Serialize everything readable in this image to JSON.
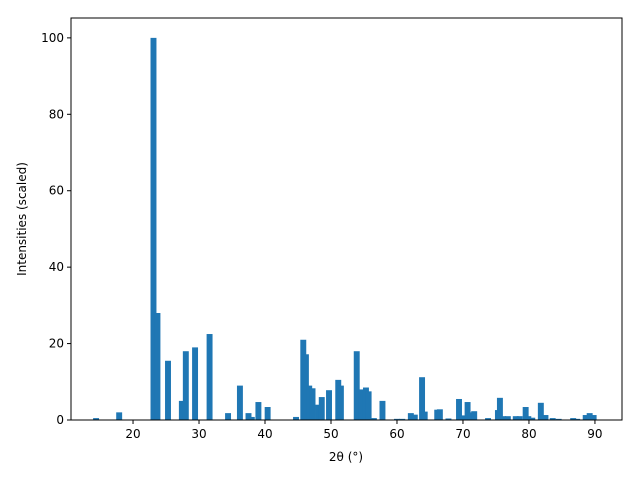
{
  "chart_data": {
    "type": "bar",
    "xlabel": "2θ (°)",
    "ylabel": "Intensities (scaled)",
    "x": [
      14.4,
      17.9,
      23.1,
      23.7,
      25.3,
      27.4,
      28.0,
      29.4,
      31.6,
      34.4,
      36.2,
      37.5,
      38.0,
      39.0,
      40.4,
      44.7,
      45.8,
      46.2,
      46.7,
      47.2,
      48.1,
      48.6,
      49.7,
      51.1,
      51.5,
      53.9,
      54.6,
      55.3,
      55.7,
      56.5,
      57.8,
      60.0,
      60.8,
      62.1,
      62.7,
      63.8,
      64.2,
      66.1,
      66.5,
      67.8,
      69.4,
      69.9,
      70.7,
      71.1,
      71.7,
      73.8,
      75.3,
      75.6,
      76.1,
      76.8,
      78.0,
      78.6,
      79.5,
      79.9,
      80.5,
      81.8,
      82.5,
      83.6,
      84.5,
      86.7,
      87.3,
      88.6,
      89.2,
      89.8
    ],
    "values": [
      0.5,
      2,
      100,
      28,
      15.5,
      5,
      18,
      19,
      22.5,
      1.8,
      9,
      1.8,
      0.8,
      4.7,
      3.4,
      0.8,
      21,
      17.2,
      9,
      8.3,
      4,
      6,
      7.8,
      10.5,
      9,
      18,
      8,
      8.5,
      7.5,
      0.5,
      5,
      0.3,
      0.3,
      1.8,
      1.4,
      11.2,
      2.2,
      2.7,
      2.8,
      0.4,
      5.5,
      1.2,
      4.7,
      2,
      2.3,
      0.5,
      2.6,
      5.8,
      1,
      1,
      1,
      1,
      3.4,
      1,
      0.6,
      4.5,
      1.3,
      0.5,
      0.3,
      0.5,
      0.3,
      1.3,
      1.8,
      1.3
    ],
    "color": "#1f77b4",
    "xlim": [
      10.6,
      94.1
    ],
    "xticks": [
      20,
      30,
      40,
      50,
      60,
      70,
      80,
      90
    ],
    "ylim": [
      0,
      105.2
    ],
    "yticks": [
      0,
      20,
      40,
      60,
      80,
      100
    ]
  }
}
